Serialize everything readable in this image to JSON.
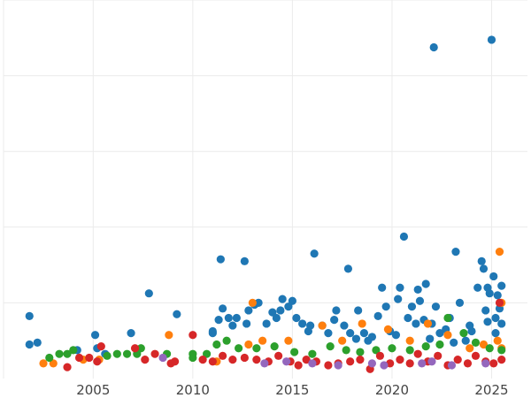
{
  "chart_data": {
    "type": "scatter",
    "title": "",
    "xlabel": "",
    "ylabel": "",
    "xlim": [
      2000.5,
      2026.8
    ],
    "ylim": [
      0,
      1
    ],
    "grid": true,
    "x_ticks": [
      2005,
      2010,
      2015,
      2020,
      2025
    ],
    "x_tick_labels": [
      "2005",
      "2010",
      "2015",
      "2020",
      "2025"
    ],
    "y_ticks": [
      0.2,
      0.4,
      0.6,
      0.8,
      1.0
    ],
    "y_tick_labels": [
      "",
      "",
      "",
      "",
      ""
    ],
    "colors": [
      "#1f77b4",
      "#ff7f0e",
      "#2ca02c",
      "#d62728",
      "#9467bd"
    ],
    "series": [
      {
        "color": "#1f77b4",
        "points": [
          [
            2001.8,
            0.165
          ],
          [
            2001.8,
            0.09
          ],
          [
            2002.2,
            0.095
          ],
          [
            2004.2,
            0.075
          ],
          [
            2005.1,
            0.115
          ],
          [
            2005.2,
            0.08
          ],
          [
            2005.6,
            0.065
          ],
          [
            2006.9,
            0.12
          ],
          [
            2007.8,
            0.225
          ],
          [
            2009.2,
            0.17
          ],
          [
            2011.0,
            0.12
          ],
          [
            2011.0,
            0.125
          ],
          [
            2011.3,
            0.155
          ],
          [
            2011.4,
            0.315
          ],
          [
            2011.5,
            0.185
          ],
          [
            2011.8,
            0.16
          ],
          [
            2012.0,
            0.14
          ],
          [
            2012.2,
            0.16
          ],
          [
            2012.6,
            0.31
          ],
          [
            2012.7,
            0.145
          ],
          [
            2012.8,
            0.18
          ],
          [
            2013.1,
            0.195
          ],
          [
            2013.3,
            0.2
          ],
          [
            2013.7,
            0.145
          ],
          [
            2014.0,
            0.175
          ],
          [
            2014.2,
            0.16
          ],
          [
            2014.4,
            0.18
          ],
          [
            2014.5,
            0.21
          ],
          [
            2014.8,
            0.19
          ],
          [
            2015.0,
            0.205
          ],
          [
            2015.2,
            0.16
          ],
          [
            2015.5,
            0.145
          ],
          [
            2015.8,
            0.125
          ],
          [
            2015.9,
            0.14
          ],
          [
            2016.1,
            0.33
          ],
          [
            2016.5,
            0.14
          ],
          [
            2016.8,
            0.12
          ],
          [
            2017.1,
            0.155
          ],
          [
            2017.2,
            0.18
          ],
          [
            2017.6,
            0.14
          ],
          [
            2017.8,
            0.29
          ],
          [
            2017.9,
            0.12
          ],
          [
            2018.2,
            0.105
          ],
          [
            2018.3,
            0.18
          ],
          [
            2018.6,
            0.12
          ],
          [
            2018.8,
            0.1
          ],
          [
            2019.0,
            0.11
          ],
          [
            2019.3,
            0.165
          ],
          [
            2019.5,
            0.24
          ],
          [
            2019.7,
            0.19
          ],
          [
            2019.9,
            0.125
          ],
          [
            2020.2,
            0.115
          ],
          [
            2020.3,
            0.21
          ],
          [
            2020.4,
            0.24
          ],
          [
            2020.6,
            0.375
          ],
          [
            2020.8,
            0.16
          ],
          [
            2021.0,
            0.19
          ],
          [
            2021.2,
            0.145
          ],
          [
            2021.3,
            0.235
          ],
          [
            2021.4,
            0.205
          ],
          [
            2021.6,
            0.155
          ],
          [
            2021.7,
            0.25
          ],
          [
            2021.9,
            0.105
          ],
          [
            2022.0,
            0.145
          ],
          [
            2022.1,
            0.875
          ],
          [
            2022.2,
            0.19
          ],
          [
            2022.4,
            0.12
          ],
          [
            2022.7,
            0.13
          ],
          [
            2022.9,
            0.16
          ],
          [
            2023.1,
            0.095
          ],
          [
            2023.2,
            0.335
          ],
          [
            2023.4,
            0.2
          ],
          [
            2023.7,
            0.1
          ],
          [
            2023.9,
            0.14
          ],
          [
            2024.0,
            0.125
          ],
          [
            2024.3,
            0.24
          ],
          [
            2024.5,
            0.31
          ],
          [
            2024.6,
            0.29
          ],
          [
            2024.7,
            0.18
          ],
          [
            2024.8,
            0.24
          ],
          [
            2024.9,
            0.225
          ],
          [
            2025.0,
            0.895
          ],
          [
            2025.1,
            0.27
          ],
          [
            2025.2,
            0.16
          ],
          [
            2025.3,
            0.22
          ],
          [
            2025.4,
            0.185
          ],
          [
            2025.5,
            0.245
          ],
          [
            2025.5,
            0.145
          ],
          [
            2024.8,
            0.15
          ],
          [
            2025.2,
            0.12
          ]
        ]
      },
      {
        "color": "#ff7f0e",
        "points": [
          [
            2002.5,
            0.04
          ],
          [
            2003.0,
            0.04
          ],
          [
            2004.5,
            0.05
          ],
          [
            2005.3,
            0.05
          ],
          [
            2008.8,
            0.115
          ],
          [
            2011.2,
            0.045
          ],
          [
            2012.8,
            0.09
          ],
          [
            2013.0,
            0.2
          ],
          [
            2013.5,
            0.1
          ],
          [
            2014.8,
            0.1
          ],
          [
            2016.5,
            0.14
          ],
          [
            2017.5,
            0.1
          ],
          [
            2018.5,
            0.145
          ],
          [
            2019.8,
            0.13
          ],
          [
            2020.9,
            0.1
          ],
          [
            2021.8,
            0.145
          ],
          [
            2022.8,
            0.115
          ],
          [
            2023.9,
            0.08
          ],
          [
            2024.6,
            0.09
          ],
          [
            2025.3,
            0.1
          ],
          [
            2025.4,
            0.335
          ],
          [
            2025.5,
            0.2
          ],
          [
            2025.5,
            0.08
          ]
        ]
      },
      {
        "color": "#2ca02c",
        "points": [
          [
            2002.8,
            0.055
          ],
          [
            2003.3,
            0.065
          ],
          [
            2003.7,
            0.065
          ],
          [
            2004.0,
            0.075
          ],
          [
            2005.7,
            0.06
          ],
          [
            2006.2,
            0.065
          ],
          [
            2006.7,
            0.065
          ],
          [
            2007.2,
            0.065
          ],
          [
            2007.4,
            0.08
          ],
          [
            2008.7,
            0.065
          ],
          [
            2010.0,
            0.055
          ],
          [
            2010.0,
            0.065
          ],
          [
            2010.7,
            0.065
          ],
          [
            2011.2,
            0.09
          ],
          [
            2011.7,
            0.1
          ],
          [
            2012.3,
            0.08
          ],
          [
            2013.2,
            0.08
          ],
          [
            2014.1,
            0.085
          ],
          [
            2015.1,
            0.07
          ],
          [
            2016.0,
            0.065
          ],
          [
            2016.9,
            0.085
          ],
          [
            2017.7,
            0.075
          ],
          [
            2018.4,
            0.07
          ],
          [
            2019.2,
            0.075
          ],
          [
            2020.0,
            0.08
          ],
          [
            2020.9,
            0.075
          ],
          [
            2021.7,
            0.085
          ],
          [
            2022.4,
            0.09
          ],
          [
            2022.8,
            0.16
          ],
          [
            2023.6,
            0.12
          ],
          [
            2024.2,
            0.095
          ],
          [
            2024.9,
            0.08
          ],
          [
            2025.5,
            0.075
          ]
        ]
      },
      {
        "color": "#d62728",
        "points": [
          [
            2003.7,
            0.03
          ],
          [
            2004.3,
            0.055
          ],
          [
            2004.8,
            0.055
          ],
          [
            2005.2,
            0.045
          ],
          [
            2005.4,
            0.085
          ],
          [
            2007.1,
            0.08
          ],
          [
            2007.6,
            0.05
          ],
          [
            2008.1,
            0.065
          ],
          [
            2008.9,
            0.04
          ],
          [
            2009.1,
            0.045
          ],
          [
            2010.0,
            0.115
          ],
          [
            2010.5,
            0.05
          ],
          [
            2011.0,
            0.045
          ],
          [
            2011.5,
            0.06
          ],
          [
            2012.0,
            0.05
          ],
          [
            2012.6,
            0.055
          ],
          [
            2013.2,
            0.05
          ],
          [
            2013.8,
            0.045
          ],
          [
            2014.3,
            0.06
          ],
          [
            2014.9,
            0.045
          ],
          [
            2015.3,
            0.035
          ],
          [
            2015.7,
            0.05
          ],
          [
            2016.2,
            0.045
          ],
          [
            2016.8,
            0.035
          ],
          [
            2017.3,
            0.04
          ],
          [
            2017.9,
            0.045
          ],
          [
            2018.4,
            0.05
          ],
          [
            2018.9,
            0.025
          ],
          [
            2019.4,
            0.06
          ],
          [
            2019.9,
            0.04
          ],
          [
            2020.4,
            0.05
          ],
          [
            2020.9,
            0.04
          ],
          [
            2021.3,
            0.065
          ],
          [
            2021.8,
            0.045
          ],
          [
            2022.3,
            0.06
          ],
          [
            2022.8,
            0.035
          ],
          [
            2023.3,
            0.05
          ],
          [
            2023.8,
            0.04
          ],
          [
            2024.2,
            0.06
          ],
          [
            2024.7,
            0.045
          ],
          [
            2025.1,
            0.04
          ],
          [
            2025.5,
            0.05
          ],
          [
            2025.4,
            0.2
          ]
        ]
      },
      {
        "color": "#9467bd",
        "points": [
          [
            2008.5,
            0.055
          ],
          [
            2013.6,
            0.04
          ],
          [
            2014.7,
            0.045
          ],
          [
            2016.0,
            0.04
          ],
          [
            2017.3,
            0.035
          ],
          [
            2019.0,
            0.04
          ],
          [
            2019.6,
            0.035
          ],
          [
            2021.5,
            0.04
          ],
          [
            2022.0,
            0.045
          ],
          [
            2023.0,
            0.035
          ],
          [
            2024.7,
            0.04
          ]
        ]
      }
    ]
  }
}
